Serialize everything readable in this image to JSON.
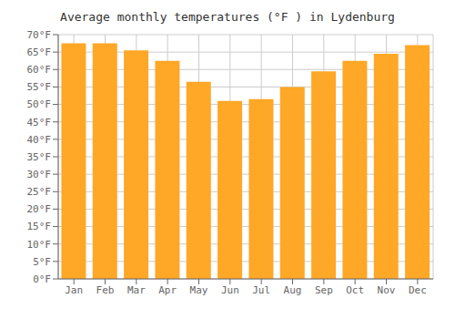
{
  "chart_data": {
    "type": "bar",
    "title": "Average monthly temperatures (°F ) in Lydenburg",
    "categories": [
      "Jan",
      "Feb",
      "Mar",
      "Apr",
      "May",
      "Jun",
      "Jul",
      "Aug",
      "Sep",
      "Oct",
      "Nov",
      "Dec"
    ],
    "values": [
      67.5,
      67.5,
      65.5,
      62.5,
      56.5,
      51.0,
      51.5,
      55.0,
      59.5,
      62.5,
      64.5,
      67.0
    ],
    "color": "#FFA726",
    "ylim": [
      0,
      70
    ],
    "yticks": [
      {
        "value": 0,
        "label": "0°F"
      },
      {
        "value": 5,
        "label": "5°F"
      },
      {
        "value": 10,
        "label": "10°F"
      },
      {
        "value": 15,
        "label": "15°F"
      },
      {
        "value": 20,
        "label": "20°F"
      },
      {
        "value": 25,
        "label": "25°F"
      },
      {
        "value": 30,
        "label": "30°F"
      },
      {
        "value": 35,
        "label": "35°F"
      },
      {
        "value": 40,
        "label": "40°F"
      },
      {
        "value": 45,
        "label": "45°F"
      },
      {
        "value": 50,
        "label": "50°F"
      },
      {
        "value": 55,
        "label": "55°F"
      },
      {
        "value": 60,
        "label": "60°F"
      },
      {
        "value": 65,
        "label": "65°F"
      },
      {
        "value": 70,
        "label": "70°F"
      }
    ],
    "grid": true
  }
}
